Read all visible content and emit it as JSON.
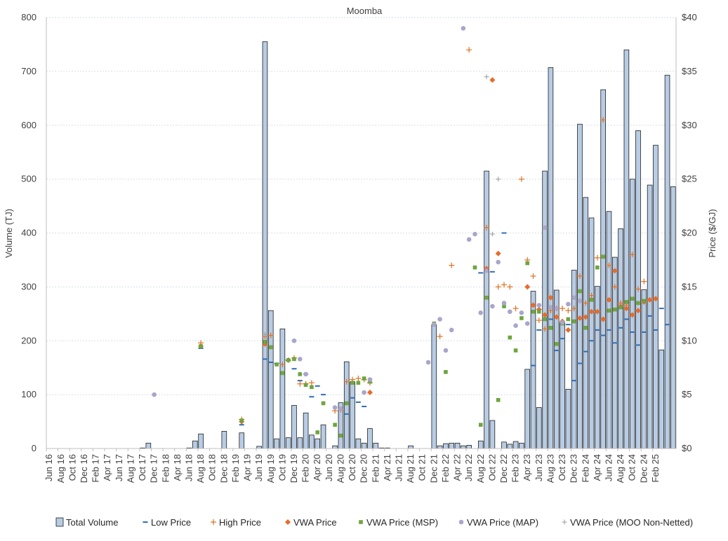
{
  "chart_data": {
    "type": "bar",
    "title": "Moomba",
    "ylabel": "Volume (TJ)",
    "y2label": "Price ($/GJ)",
    "ylim": [
      0,
      800
    ],
    "y2lim": [
      0,
      40
    ],
    "yticks": [
      "0",
      "100",
      "200",
      "300",
      "400",
      "500",
      "600",
      "700",
      "800"
    ],
    "y2ticks": [
      "$0",
      "$5",
      "$10",
      "$15",
      "$20",
      "$25",
      "$30",
      "$35",
      "$40"
    ],
    "start_month": "Jun 16",
    "x_labels": [
      "Jun 16",
      "Aug 16",
      "Oct 16",
      "Dec 16",
      "Feb 17",
      "Apr 17",
      "Jun 17",
      "Aug 17",
      "Oct 17",
      "Dec 17",
      "Feb 18",
      "Apr 18",
      "Jun 18",
      "Aug 18",
      "Oct 18",
      "Dec 18",
      "Feb 19",
      "Apr 19",
      "Jun 19",
      "Aug 19",
      "Oct 19",
      "Dec 19",
      "Feb 20",
      "Apr 20",
      "Jun 20",
      "Aug 20",
      "Oct 20",
      "Dec 20",
      "Feb 21",
      "Apr 21",
      "Jun 21",
      "Aug 21",
      "Oct 21",
      "Dec 21",
      "Feb 22",
      "Apr 22",
      "Jun 22",
      "Aug 22",
      "Oct 22",
      "Dec 22",
      "Feb 23",
      "Apr 23",
      "Jun 23",
      "Aug 23",
      "Oct 23",
      "Dec 23",
      "Feb 24",
      "Apr 24",
      "Jun 24",
      "Aug 24",
      "Oct 24",
      "Dec 24",
      "Feb 25"
    ],
    "grid": true,
    "legend_position": "bottom",
    "series": [
      {
        "name": "Total Volume",
        "kind": "bar",
        "axis": "left",
        "values": [
          0,
          0,
          0,
          0,
          0,
          0,
          0,
          0,
          0,
          0,
          0,
          0,
          0,
          0,
          0,
          0,
          1,
          10,
          0,
          0,
          0,
          0,
          0,
          0,
          1,
          14,
          27,
          0,
          0,
          0,
          32,
          0,
          0,
          29,
          0,
          0,
          4,
          755,
          256,
          18,
          222,
          20,
          80,
          20,
          66,
          25,
          18,
          44,
          0,
          5,
          85,
          161,
          124,
          18,
          10,
          37,
          10,
          1,
          1,
          0,
          0,
          0,
          5,
          0,
          0,
          0,
          230,
          5,
          9,
          10,
          10,
          5,
          6,
          0,
          14,
          515,
          52,
          0,
          12,
          8,
          13,
          10,
          147,
          292,
          76,
          515,
          707,
          294,
          234,
          110,
          331,
          602,
          466,
          428,
          301,
          666,
          440,
          355,
          408,
          740,
          500,
          590,
          295,
          489,
          563,
          183,
          693,
          486
        ]
      },
      {
        "name": "Low Price",
        "kind": "marker",
        "axis": "right",
        "color": "#2f6db5",
        "values": [
          null,
          null,
          null,
          null,
          null,
          null,
          null,
          null,
          null,
          null,
          null,
          null,
          null,
          null,
          null,
          null,
          null,
          null,
          null,
          null,
          null,
          null,
          null,
          null,
          null,
          null,
          9.3,
          null,
          null,
          null,
          null,
          null,
          null,
          2.2,
          null,
          null,
          null,
          8.3,
          8.0,
          7.9,
          null,
          8.2,
          7.4,
          6.3,
          6.9,
          4.8,
          5.8,
          5.0,
          null,
          null,
          3.6,
          3.2,
          4.7,
          4.3,
          3.9,
          null,
          null,
          null,
          null,
          null,
          null,
          null,
          null,
          null,
          null,
          null,
          null,
          null,
          null,
          null,
          null,
          null,
          null,
          null,
          16.3,
          null,
          16.4,
          null,
          20.0,
          null,
          null,
          null,
          null,
          7.7,
          11.0,
          12.0,
          12.0,
          9.1,
          10.2,
          11.5,
          6.3,
          7.9,
          9.0,
          10.0,
          11.0,
          10.5,
          11.0,
          9.8,
          11.2,
          12.0,
          10.8,
          9.6,
          10.8,
          12.3,
          11.0,
          13.0,
          11.5
        ]
      },
      {
        "name": "High Price",
        "kind": "marker",
        "axis": "right",
        "color": "#e0701f",
        "values": [
          null,
          null,
          null,
          null,
          null,
          null,
          null,
          null,
          null,
          null,
          null,
          null,
          null,
          null,
          null,
          null,
          null,
          null,
          null,
          null,
          null,
          null,
          null,
          null,
          null,
          null,
          9.8,
          null,
          null,
          null,
          null,
          null,
          null,
          2.7,
          null,
          null,
          null,
          10.4,
          10.5,
          null,
          7.8,
          8.2,
          8.4,
          6.0,
          6.0,
          6.1,
          null,
          null,
          null,
          3.5,
          3.6,
          6.2,
          6.4,
          6.5,
          6.4,
          6.1,
          null,
          null,
          null,
          null,
          null,
          null,
          null,
          null,
          null,
          null,
          null,
          10.4,
          null,
          17.0,
          null,
          null,
          37.0,
          null,
          null,
          20.5,
          null,
          15.0,
          15.2,
          15.0,
          13.0,
          25.0,
          17.5,
          16.0,
          11.9,
          11.1,
          12.8,
          13.0,
          13.0,
          12.8,
          13.0,
          16.0,
          13.5,
          14.2,
          17.7,
          30.5,
          17.0,
          15.0,
          13.5,
          13.3,
          18.0,
          14.8,
          15.5
        ]
      },
      {
        "name": "VWA Price",
        "kind": "marker",
        "axis": "right",
        "color": "#e86b2a",
        "values": [
          null,
          null,
          null,
          null,
          null,
          null,
          null,
          null,
          null,
          null,
          null,
          null,
          null,
          null,
          null,
          null,
          null,
          null,
          null,
          null,
          null,
          null,
          null,
          null,
          null,
          null,
          9.5,
          null,
          null,
          null,
          null,
          null,
          null,
          2.5,
          null,
          null,
          null,
          9.7,
          null,
          null,
          null,
          null,
          null,
          null,
          null,
          null,
          null,
          null,
          null,
          null,
          null,
          null,
          null,
          null,
          null,
          5.2,
          null,
          null,
          null,
          null,
          null,
          null,
          null,
          null,
          null,
          null,
          null,
          null,
          null,
          null,
          null,
          null,
          null,
          null,
          null,
          16.7,
          34.2,
          18.1,
          null,
          null,
          null,
          null,
          15.0,
          13.3,
          12.9,
          12.4,
          14.0,
          12.2,
          11.8,
          11.0,
          null,
          12.1,
          12.2,
          12.7,
          12.7,
          12.0,
          13.8,
          16.5,
          13.2,
          13.0,
          12.4,
          12.8,
          13.6,
          13.8,
          13.9
        ]
      },
      {
        "name": "VWA Price (MSP)",
        "kind": "marker",
        "axis": "right",
        "color": "#6ea53f",
        "values": [
          null,
          null,
          null,
          null,
          null,
          null,
          null,
          null,
          null,
          null,
          null,
          null,
          null,
          null,
          null,
          null,
          null,
          null,
          null,
          null,
          null,
          null,
          null,
          null,
          null,
          null,
          9.5,
          null,
          null,
          null,
          null,
          null,
          null,
          2.6,
          null,
          null,
          null,
          9.9,
          9.4,
          7.8,
          7.0,
          8.2,
          8.3,
          6.9,
          5.9,
          5.7,
          1.5,
          4.2,
          null,
          2.2,
          1.2,
          4.2,
          6.1,
          6.1,
          6.5,
          6.2,
          null,
          null,
          null,
          null,
          null,
          null,
          null,
          null,
          null,
          null,
          11.6,
          null,
          7.1,
          null,
          null,
          null,
          null,
          16.8,
          2.2,
          14.0,
          null,
          4.5,
          13.2,
          10.3,
          9.1,
          12.1,
          17.2,
          12.7,
          12.7,
          12.0,
          11.2,
          9.7,
          11.6,
          12.0,
          11.8,
          14.6,
          11.2,
          13.8,
          16.8,
          17.8,
          12.8,
          12.9,
          13.1,
          13.6,
          13.9,
          13.5,
          13.7
        ]
      },
      {
        "name": "VWA Price (MAP)",
        "kind": "marker",
        "axis": "right",
        "color": "#a9a6cc",
        "values": [
          null,
          null,
          null,
          null,
          null,
          null,
          null,
          null,
          null,
          null,
          null,
          null,
          null,
          null,
          null,
          null,
          null,
          null,
          5.0,
          null,
          null,
          null,
          null,
          null,
          null,
          null,
          null,
          null,
          null,
          null,
          null,
          null,
          null,
          null,
          null,
          null,
          null,
          null,
          null,
          null,
          null,
          null,
          10.0,
          8.3,
          6.9,
          null,
          null,
          null,
          null,
          3.8,
          3.7,
          null,
          null,
          null,
          5.2,
          6.4,
          null,
          null,
          null,
          null,
          null,
          null,
          null,
          null,
          null,
          8.0,
          11.5,
          12.0,
          9.1,
          11.0,
          null,
          39.0,
          19.4,
          19.9,
          12.6,
          16.5,
          13.2,
          17.3,
          13.5,
          12.7,
          11.4,
          12.6,
          11.6,
          null,
          13.3,
          20.5,
          13.1,
          13.0,
          11.7,
          13.4,
          14.0,
          13.7
        ]
      },
      {
        "name": "VWA Price (MOO Non-Netted)",
        "kind": "marker",
        "axis": "right",
        "color": "#9a9a9a",
        "values": [
          null,
          null,
          null,
          null,
          null,
          null,
          null,
          null,
          null,
          null,
          null,
          null,
          null,
          null,
          null,
          null,
          null,
          null,
          null,
          null,
          null,
          null,
          null,
          null,
          null,
          null,
          null,
          null,
          null,
          null,
          null,
          null,
          null,
          null,
          null,
          null,
          null,
          10.6,
          null,
          null,
          null,
          null,
          null,
          null,
          null,
          null,
          null,
          null,
          null,
          null,
          null,
          null,
          null,
          null,
          null,
          null,
          null,
          null,
          null,
          null,
          null,
          null,
          null,
          null,
          null,
          null,
          null,
          null,
          null,
          null,
          null,
          null,
          null,
          null,
          null,
          34.5,
          19.9,
          25.0,
          null,
          null,
          null,
          null,
          null,
          null,
          null,
          null,
          null,
          null,
          null,
          null,
          null,
          null,
          null,
          null,
          null,
          null,
          null,
          null,
          null,
          null,
          null,
          null,
          null,
          null,
          null
        ]
      }
    ]
  }
}
